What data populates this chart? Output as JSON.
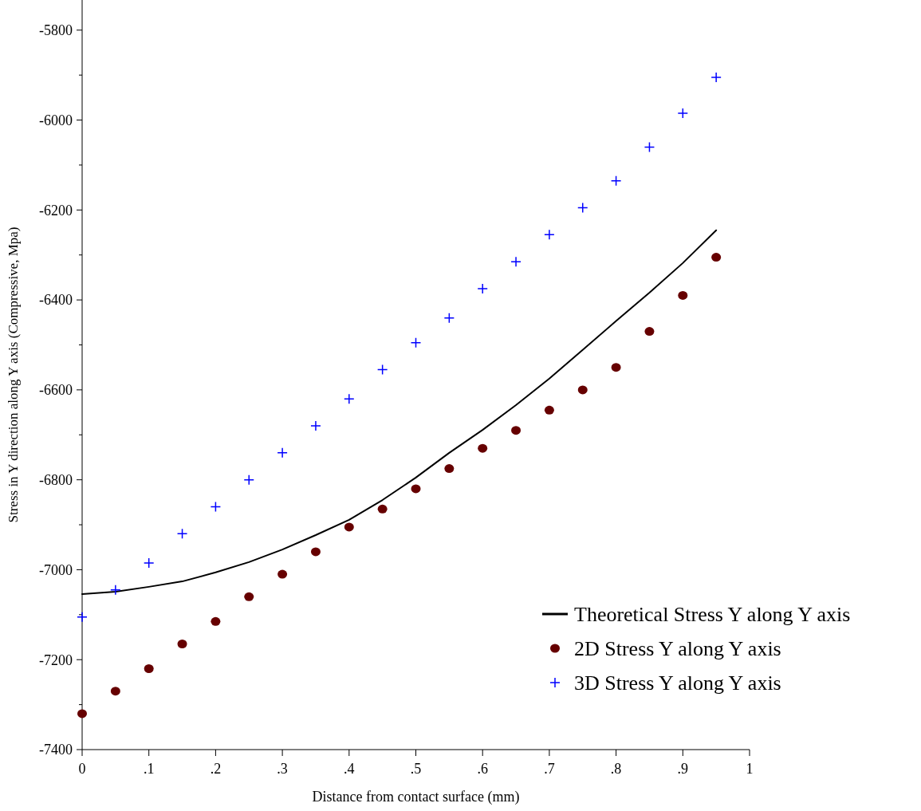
{
  "chart_data": {
    "type": "line",
    "xlabel": "Distance from contact surface (mm)",
    "ylabel": "Stress in Y direction along Y axis (Compressive, Mpa)",
    "x": [
      0,
      0.05,
      0.1,
      0.15,
      0.2,
      0.25,
      0.3,
      0.35,
      0.4,
      0.45,
      0.5,
      0.55,
      0.6,
      0.65,
      0.7,
      0.75,
      0.8,
      0.85,
      0.9,
      0.95
    ],
    "xlim": [
      0,
      1
    ],
    "xticks": [
      0,
      {
        "value": 0.1,
        "label": ".1"
      },
      {
        "value": 0.2,
        "label": ".2"
      },
      {
        "value": 0.3,
        "label": ".3"
      },
      {
        "value": 0.4,
        "label": ".4"
      },
      {
        "value": 0.5,
        "label": ".5"
      },
      {
        "value": 0.6,
        "label": ".6"
      },
      {
        "value": 0.7,
        "label": ".7"
      },
      {
        "value": 0.8,
        "label": ".8"
      },
      {
        "value": 0.9,
        "label": ".9"
      },
      1
    ],
    "ylim": [
      -7400,
      -5733
    ],
    "yticks": [
      -7400,
      {
        "value": -7300,
        "label": null
      },
      -7200,
      {
        "value": -7100,
        "label": null
      },
      -7000,
      {
        "value": -6900,
        "label": null
      },
      -6800,
      {
        "value": -6700,
        "label": null
      },
      -6600,
      {
        "value": -6500,
        "label": null
      },
      -6400,
      {
        "value": -6300,
        "label": null
      },
      -6200,
      {
        "value": -6100,
        "label": null
      },
      -6000,
      {
        "value": -5900,
        "label": null
      },
      -5800
    ],
    "legend": "bottom right",
    "grid": false,
    "series": [
      {
        "name": "Theoretical Stress Y along Y axis",
        "color": "#000000",
        "marker": "none",
        "line_style": "solid",
        "values": [
          -7054,
          -7049,
          -7038,
          -7026,
          -7006,
          -6983,
          -6955,
          -6923,
          -6889,
          -6845,
          -6795,
          -6740,
          -6689,
          -6634,
          -6575,
          -6511,
          -6447,
          -6384,
          -6318,
          -6245
        ]
      },
      {
        "name": "2D Stress Y along Y axis",
        "type": "scatter",
        "color": "#660000",
        "marker": "circle",
        "values": [
          -7320,
          -7270,
          -7220,
          -7165,
          -7115,
          -7060,
          -7010,
          -6960,
          -6905,
          -6865,
          -6820,
          -6775,
          -6730,
          -6690,
          -6645,
          -6600,
          -6550,
          -6470,
          -6390,
          -6305
        ]
      },
      {
        "name": "3D Stress Y along Y axis",
        "type": "scatter",
        "color": "#0000ff",
        "marker": "cross",
        "values": [
          -7105,
          -7045,
          -6985,
          -6920,
          -6860,
          -6800,
          -6740,
          -6680,
          -6620,
          -6555,
          -6495,
          -6440,
          -6375,
          -6315,
          -6255,
          -6195,
          -6135,
          -6060,
          -5985,
          -5905
        ]
      }
    ]
  }
}
